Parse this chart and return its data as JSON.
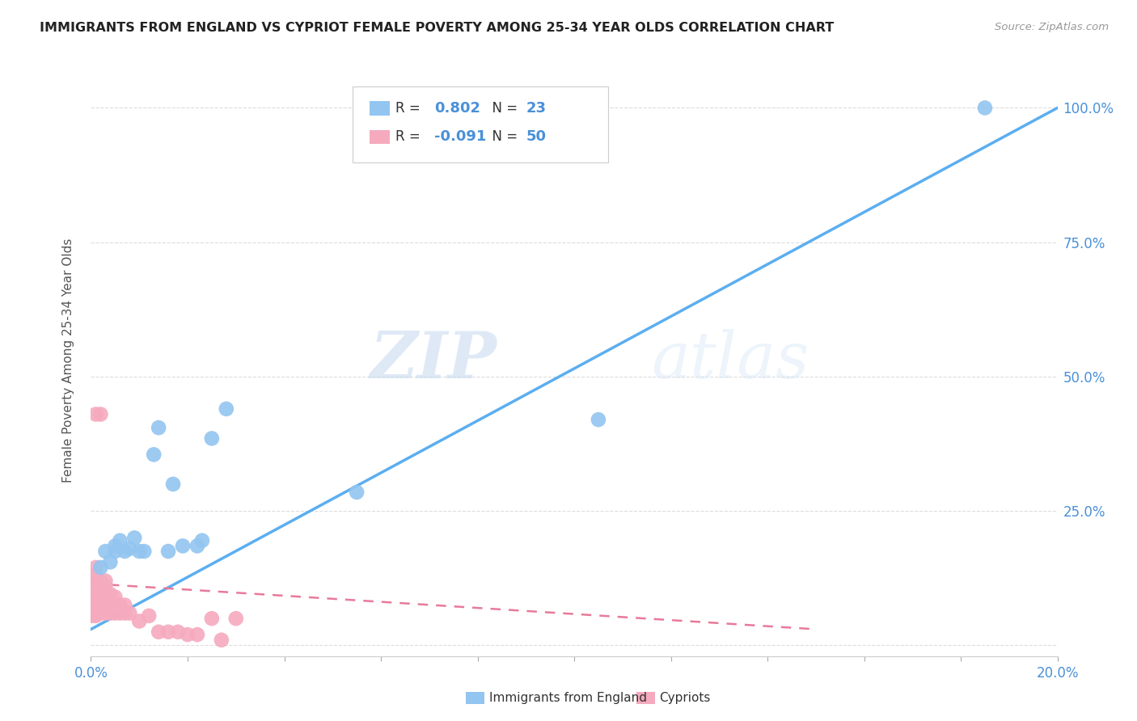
{
  "title": "IMMIGRANTS FROM ENGLAND VS CYPRIOT FEMALE POVERTY AMONG 25-34 YEAR OLDS CORRELATION CHART",
  "source": "Source: ZipAtlas.com",
  "ylabel": "Female Poverty Among 25-34 Year Olds",
  "xlim": [
    0.0,
    0.2
  ],
  "ylim": [
    -0.02,
    1.08
  ],
  "xtick_positions": [
    0.0,
    0.02,
    0.04,
    0.06,
    0.08,
    0.1,
    0.12,
    0.14,
    0.16,
    0.18,
    0.2
  ],
  "xtick_labels_show": [
    "0.0%",
    "",
    "",
    "",
    "",
    "",
    "",
    "",
    "",
    "",
    "20.0%"
  ],
  "ytick_positions": [
    0.0,
    0.25,
    0.5,
    0.75,
    1.0
  ],
  "ytick_labels_right": [
    "",
    "25.0%",
    "50.0%",
    "75.0%",
    "100.0%"
  ],
  "ytick_labels_left": [
    "",
    "",
    "",
    "",
    ""
  ],
  "blue_color": "#92C5F0",
  "pink_color": "#F5AABE",
  "blue_line_color": "#5BAEF0",
  "pink_line_color": "#E87A9A",
  "legend_R_blue": "0.802",
  "legend_N_blue": "23",
  "legend_R_pink": "-0.091",
  "legend_N_pink": "50",
  "legend_label_blue": "Immigrants from England",
  "legend_label_pink": "Cypriots",
  "watermark_zip": "ZIP",
  "watermark_atlas": "atlas",
  "blue_scatter_x": [
    0.002,
    0.003,
    0.004,
    0.005,
    0.005,
    0.006,
    0.007,
    0.008,
    0.009,
    0.01,
    0.011,
    0.013,
    0.014,
    0.016,
    0.017,
    0.019,
    0.022,
    0.023,
    0.025,
    0.028,
    0.055,
    0.105,
    0.185
  ],
  "blue_scatter_y": [
    0.145,
    0.175,
    0.155,
    0.185,
    0.175,
    0.195,
    0.175,
    0.18,
    0.2,
    0.175,
    0.175,
    0.355,
    0.405,
    0.175,
    0.3,
    0.185,
    0.185,
    0.195,
    0.385,
    0.44,
    0.285,
    0.42,
    1.0
  ],
  "pink_scatter_x": [
    0.0,
    0.0,
    0.0,
    0.0,
    0.0,
    0.001,
    0.001,
    0.001,
    0.001,
    0.001,
    0.001,
    0.001,
    0.001,
    0.001,
    0.001,
    0.001,
    0.002,
    0.002,
    0.002,
    0.002,
    0.002,
    0.002,
    0.002,
    0.003,
    0.003,
    0.003,
    0.003,
    0.003,
    0.003,
    0.004,
    0.004,
    0.004,
    0.005,
    0.005,
    0.005,
    0.006,
    0.006,
    0.007,
    0.007,
    0.008,
    0.01,
    0.012,
    0.014,
    0.016,
    0.018,
    0.02,
    0.022,
    0.025,
    0.027,
    0.03
  ],
  "pink_scatter_y": [
    0.055,
    0.075,
    0.095,
    0.105,
    0.13,
    0.055,
    0.065,
    0.08,
    0.09,
    0.105,
    0.12,
    0.13,
    0.145,
    0.08,
    0.095,
    0.43,
    0.06,
    0.075,
    0.085,
    0.095,
    0.11,
    0.12,
    0.43,
    0.06,
    0.075,
    0.085,
    0.095,
    0.11,
    0.12,
    0.06,
    0.075,
    0.095,
    0.06,
    0.075,
    0.09,
    0.06,
    0.075,
    0.06,
    0.075,
    0.06,
    0.045,
    0.055,
    0.025,
    0.025,
    0.025,
    0.02,
    0.02,
    0.05,
    0.01,
    0.05
  ],
  "blue_trendline_x": [
    0.0,
    0.2
  ],
  "blue_trendline_y": [
    0.03,
    1.0
  ],
  "pink_trendline_x": [
    0.0,
    0.15
  ],
  "pink_trendline_y": [
    0.115,
    0.03
  ]
}
